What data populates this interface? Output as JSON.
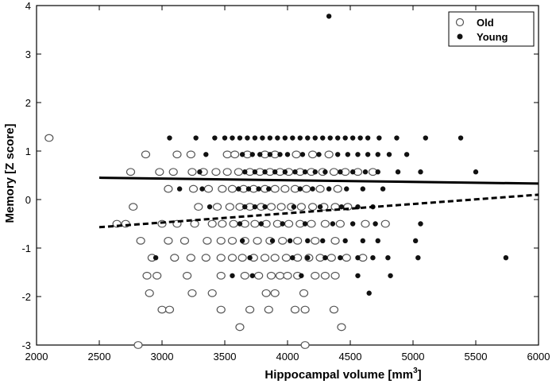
{
  "chart_data": {
    "type": "scatter",
    "title": "",
    "xlabel": "Hippocampal volume [mm",
    "xlabel_sup": "3",
    "xlabel_end": "]",
    "ylabel": "Memory [Z score]",
    "xlim": [
      2000,
      6000
    ],
    "ylim": [
      -3,
      4
    ],
    "xticks": [
      2000,
      2500,
      3000,
      3500,
      4000,
      4500,
      5000,
      5500,
      6000
    ],
    "yticks": [
      -3,
      -2,
      -1,
      0,
      1,
      2,
      3,
      4
    ],
    "grid": false,
    "legend_position": "top-right",
    "colors": {
      "old_edge": "#555555",
      "young_fill": "#111111",
      "line": "#000000"
    },
    "series": [
      {
        "name": "Old",
        "marker": "open-circle",
        "points": [
          [
            2100,
            1.27
          ],
          [
            2870,
            0.93
          ],
          [
            3120,
            0.93
          ],
          [
            3230,
            0.93
          ],
          [
            3520,
            0.93
          ],
          [
            3580,
            0.93
          ],
          [
            3680,
            0.93
          ],
          [
            3820,
            0.93
          ],
          [
            3900,
            0.93
          ],
          [
            4070,
            0.93
          ],
          [
            4200,
            0.93
          ],
          [
            4330,
            0.93
          ],
          [
            2750,
            0.57
          ],
          [
            2980,
            0.57
          ],
          [
            3090,
            0.57
          ],
          [
            3240,
            0.57
          ],
          [
            3330,
            0.57
          ],
          [
            3430,
            0.57
          ],
          [
            3520,
            0.57
          ],
          [
            3610,
            0.57
          ],
          [
            3700,
            0.57
          ],
          [
            3780,
            0.57
          ],
          [
            3860,
            0.57
          ],
          [
            3940,
            0.57
          ],
          [
            4010,
            0.57
          ],
          [
            4100,
            0.57
          ],
          [
            4190,
            0.57
          ],
          [
            4280,
            0.57
          ],
          [
            4370,
            0.57
          ],
          [
            4460,
            0.57
          ],
          [
            4560,
            0.57
          ],
          [
            4680,
            0.57
          ],
          [
            3050,
            0.22
          ],
          [
            3250,
            0.22
          ],
          [
            3370,
            0.22
          ],
          [
            3480,
            0.22
          ],
          [
            3560,
            0.22
          ],
          [
            3650,
            0.22
          ],
          [
            3730,
            0.22
          ],
          [
            3820,
            0.22
          ],
          [
            3900,
            0.22
          ],
          [
            3980,
            0.22
          ],
          [
            4060,
            0.22
          ],
          [
            4150,
            0.22
          ],
          [
            4260,
            0.22
          ],
          [
            4400,
            0.22
          ],
          [
            2770,
            -0.15
          ],
          [
            3290,
            -0.15
          ],
          [
            3440,
            -0.15
          ],
          [
            3540,
            -0.15
          ],
          [
            3620,
            -0.15
          ],
          [
            3700,
            -0.15
          ],
          [
            3790,
            -0.15
          ],
          [
            3870,
            -0.15
          ],
          [
            3950,
            -0.15
          ],
          [
            4030,
            -0.15
          ],
          [
            4110,
            -0.15
          ],
          [
            4200,
            -0.15
          ],
          [
            4290,
            -0.15
          ],
          [
            4380,
            -0.15
          ],
          [
            4480,
            -0.15
          ],
          [
            2640,
            -0.5
          ],
          [
            2710,
            -0.5
          ],
          [
            3000,
            -0.5
          ],
          [
            3120,
            -0.5
          ],
          [
            3260,
            -0.5
          ],
          [
            3400,
            -0.5
          ],
          [
            3480,
            -0.5
          ],
          [
            3570,
            -0.5
          ],
          [
            3660,
            -0.5
          ],
          [
            3740,
            -0.5
          ],
          [
            3830,
            -0.5
          ],
          [
            3920,
            -0.5
          ],
          [
            4010,
            -0.5
          ],
          [
            4100,
            -0.5
          ],
          [
            4190,
            -0.5
          ],
          [
            4300,
            -0.5
          ],
          [
            4420,
            -0.5
          ],
          [
            4620,
            -0.5
          ],
          [
            4780,
            -0.5
          ],
          [
            2830,
            -0.85
          ],
          [
            3050,
            -0.85
          ],
          [
            3180,
            -0.85
          ],
          [
            3360,
            -0.85
          ],
          [
            3470,
            -0.85
          ],
          [
            3560,
            -0.85
          ],
          [
            3660,
            -0.85
          ],
          [
            3760,
            -0.85
          ],
          [
            3860,
            -0.85
          ],
          [
            3960,
            -0.85
          ],
          [
            4080,
            -0.85
          ],
          [
            4220,
            -0.85
          ],
          [
            4380,
            -0.85
          ],
          [
            2920,
            -1.2
          ],
          [
            3100,
            -1.2
          ],
          [
            3230,
            -1.2
          ],
          [
            3350,
            -1.2
          ],
          [
            3470,
            -1.2
          ],
          [
            3560,
            -1.2
          ],
          [
            3640,
            -1.2
          ],
          [
            3730,
            -1.2
          ],
          [
            3820,
            -1.2
          ],
          [
            3900,
            -1.2
          ],
          [
            3990,
            -1.2
          ],
          [
            4080,
            -1.2
          ],
          [
            4170,
            -1.2
          ],
          [
            4260,
            -1.2
          ],
          [
            4350,
            -1.2
          ],
          [
            4470,
            -1.2
          ],
          [
            4600,
            -1.2
          ],
          [
            2880,
            -1.57
          ],
          [
            2960,
            -1.57
          ],
          [
            3200,
            -1.57
          ],
          [
            3470,
            -1.57
          ],
          [
            3660,
            -1.57
          ],
          [
            3770,
            -1.57
          ],
          [
            3870,
            -1.57
          ],
          [
            3940,
            -1.57
          ],
          [
            4000,
            -1.57
          ],
          [
            4080,
            -1.57
          ],
          [
            4220,
            -1.57
          ],
          [
            4300,
            -1.57
          ],
          [
            4380,
            -1.57
          ],
          [
            2900,
            -1.93
          ],
          [
            3240,
            -1.93
          ],
          [
            3400,
            -1.93
          ],
          [
            3830,
            -1.93
          ],
          [
            3900,
            -1.93
          ],
          [
            4130,
            -1.93
          ],
          [
            3000,
            -2.27
          ],
          [
            3060,
            -2.27
          ],
          [
            3470,
            -2.27
          ],
          [
            3700,
            -2.27
          ],
          [
            3850,
            -2.27
          ],
          [
            4060,
            -2.27
          ],
          [
            4140,
            -2.27
          ],
          [
            4370,
            -2.27
          ],
          [
            3620,
            -2.63
          ],
          [
            4430,
            -2.63
          ],
          [
            2810,
            -3.0
          ],
          [
            4140,
            -3.0
          ]
        ]
      },
      {
        "name": "Young",
        "marker": "filled-circle",
        "points": [
          [
            4330,
            3.78
          ],
          [
            3060,
            1.27
          ],
          [
            3270,
            1.27
          ],
          [
            3420,
            1.27
          ],
          [
            3500,
            1.27
          ],
          [
            3560,
            1.27
          ],
          [
            3620,
            1.27
          ],
          [
            3680,
            1.27
          ],
          [
            3740,
            1.27
          ],
          [
            3800,
            1.27
          ],
          [
            3860,
            1.27
          ],
          [
            3920,
            1.27
          ],
          [
            3980,
            1.27
          ],
          [
            4040,
            1.27
          ],
          [
            4100,
            1.27
          ],
          [
            4160,
            1.27
          ],
          [
            4220,
            1.27
          ],
          [
            4280,
            1.27
          ],
          [
            4340,
            1.27
          ],
          [
            4400,
            1.27
          ],
          [
            4460,
            1.27
          ],
          [
            4520,
            1.27
          ],
          [
            4580,
            1.27
          ],
          [
            4640,
            1.27
          ],
          [
            4730,
            1.27
          ],
          [
            4870,
            1.27
          ],
          [
            5100,
            1.27
          ],
          [
            5380,
            1.27
          ],
          [
            3350,
            0.93
          ],
          [
            3640,
            0.93
          ],
          [
            3720,
            0.93
          ],
          [
            3780,
            0.93
          ],
          [
            3860,
            0.93
          ],
          [
            3940,
            0.93
          ],
          [
            4000,
            0.93
          ],
          [
            4120,
            0.93
          ],
          [
            4250,
            0.93
          ],
          [
            4400,
            0.93
          ],
          [
            4480,
            0.93
          ],
          [
            4560,
            0.93
          ],
          [
            4640,
            0.93
          ],
          [
            4720,
            0.93
          ],
          [
            4810,
            0.93
          ],
          [
            4950,
            0.93
          ],
          [
            3300,
            0.57
          ],
          [
            3660,
            0.57
          ],
          [
            3740,
            0.57
          ],
          [
            3820,
            0.57
          ],
          [
            3900,
            0.57
          ],
          [
            3980,
            0.57
          ],
          [
            4060,
            0.57
          ],
          [
            4140,
            0.57
          ],
          [
            4220,
            0.57
          ],
          [
            4300,
            0.57
          ],
          [
            4420,
            0.57
          ],
          [
            4520,
            0.57
          ],
          [
            4620,
            0.57
          ],
          [
            4720,
            0.57
          ],
          [
            4880,
            0.57
          ],
          [
            5060,
            0.57
          ],
          [
            5500,
            0.57
          ],
          [
            3140,
            0.22
          ],
          [
            3320,
            0.22
          ],
          [
            3610,
            0.22
          ],
          [
            3690,
            0.22
          ],
          [
            3770,
            0.22
          ],
          [
            3850,
            0.22
          ],
          [
            4100,
            0.22
          ],
          [
            4200,
            0.22
          ],
          [
            4330,
            0.22
          ],
          [
            4470,
            0.22
          ],
          [
            4600,
            0.22
          ],
          [
            4760,
            0.22
          ],
          [
            3380,
            -0.15
          ],
          [
            3660,
            -0.15
          ],
          [
            3740,
            -0.15
          ],
          [
            3820,
            -0.15
          ],
          [
            4050,
            -0.15
          ],
          [
            4260,
            -0.15
          ],
          [
            4430,
            -0.15
          ],
          [
            4560,
            -0.15
          ],
          [
            4680,
            -0.15
          ],
          [
            3620,
            -0.5
          ],
          [
            3790,
            -0.5
          ],
          [
            3960,
            -0.5
          ],
          [
            4140,
            -0.5
          ],
          [
            4360,
            -0.5
          ],
          [
            4520,
            -0.5
          ],
          [
            4700,
            -0.5
          ],
          [
            5060,
            -0.5
          ],
          [
            3640,
            -0.85
          ],
          [
            3880,
            -0.85
          ],
          [
            4020,
            -0.85
          ],
          [
            4160,
            -0.85
          ],
          [
            4280,
            -0.85
          ],
          [
            4460,
            -0.85
          ],
          [
            4600,
            -0.85
          ],
          [
            4720,
            -0.85
          ],
          [
            5020,
            -0.85
          ],
          [
            2950,
            -1.2
          ],
          [
            3700,
            -1.2
          ],
          [
            4040,
            -1.2
          ],
          [
            4160,
            -1.2
          ],
          [
            4300,
            -1.2
          ],
          [
            4420,
            -1.2
          ],
          [
            4560,
            -1.2
          ],
          [
            4680,
            -1.2
          ],
          [
            4800,
            -1.2
          ],
          [
            5040,
            -1.2
          ],
          [
            5740,
            -1.2
          ],
          [
            3560,
            -1.57
          ],
          [
            3720,
            -1.57
          ],
          [
            4110,
            -1.57
          ],
          [
            4560,
            -1.57
          ],
          [
            4820,
            -1.57
          ],
          [
            4650,
            -1.93
          ]
        ]
      }
    ],
    "fit_lines": [
      {
        "series": "Young",
        "style": "solid",
        "x": [
          2500,
          6000
        ],
        "y": [
          0.45,
          0.33
        ]
      },
      {
        "series": "Old",
        "style": "dashed",
        "x": [
          2500,
          6000
        ],
        "y": [
          -0.57,
          0.1
        ]
      }
    ]
  }
}
